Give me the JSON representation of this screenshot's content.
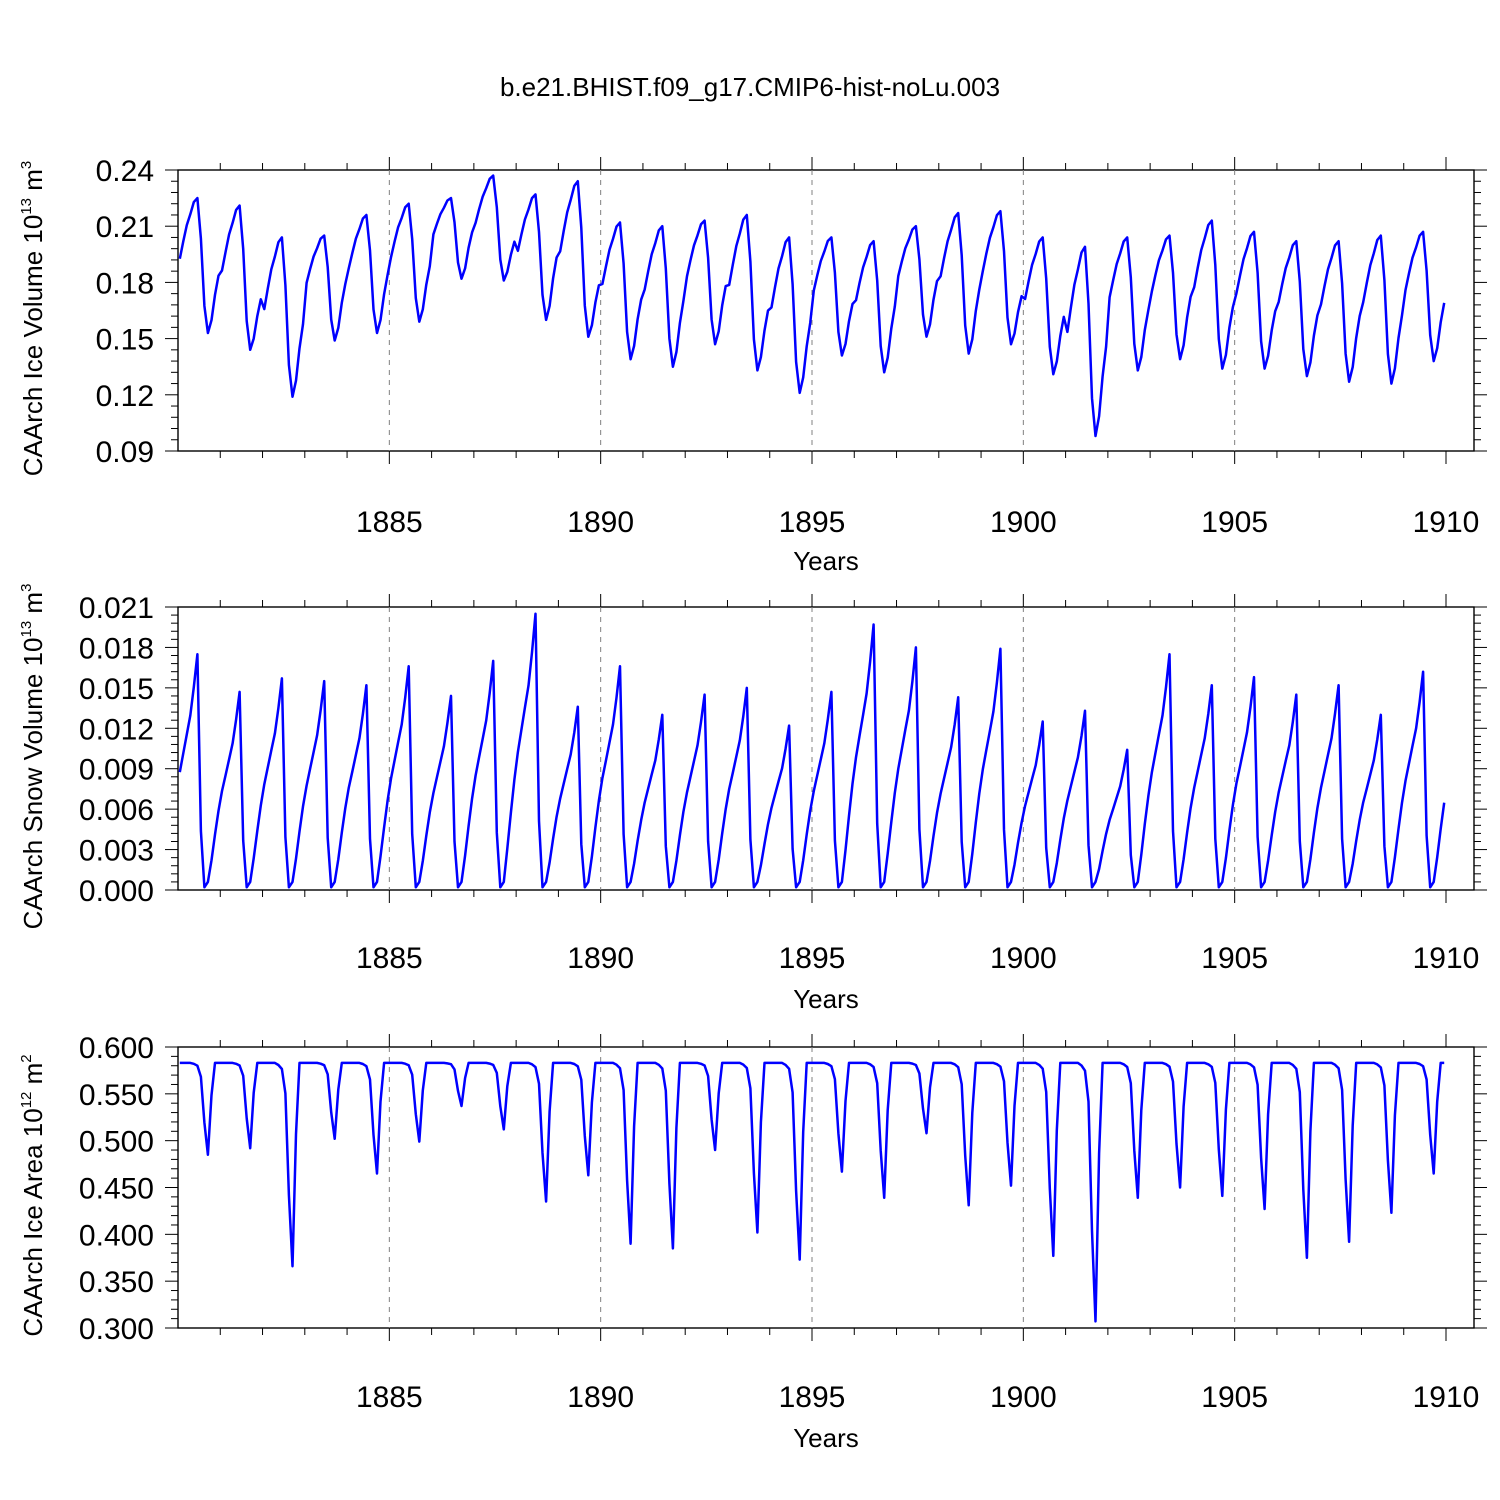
{
  "figure": {
    "title": "b.e21.BHIST.f09_g17.CMIP6-hist-noLu.003"
  },
  "colors": {
    "series": "#0000ff",
    "axis": "#000000",
    "grid": "#808080",
    "background": "#ffffff"
  },
  "chart_data": [
    {
      "type": "line",
      "ylabel_main": "CAArch Ice Volume 10",
      "ylabel_exp": "13",
      "ylabel_unit": " m",
      "ylabel_unit_exp": "3",
      "xlabel": "Years",
      "xlim": [
        1880,
        1910
      ],
      "ylim": [
        0.09,
        0.24
      ],
      "yticks": [
        "0.09",
        "0.12",
        "0.15",
        "0.18",
        "0.21",
        "0.24"
      ],
      "xticks": [
        "1885",
        "1890",
        "1895",
        "1900",
        "1905",
        "1910"
      ],
      "grid": "dashed vertical lines at 1885, 1890, 1895, 1900, 1905",
      "series": [
        {
          "name": "CAArch Ice Volume",
          "annual_max": [
            0.225,
            0.221,
            0.204,
            0.205,
            0.216,
            0.222,
            0.225,
            0.237,
            0.227,
            0.234,
            0.212,
            0.21,
            0.213,
            0.216,
            0.204,
            0.204,
            0.202,
            0.21,
            0.217,
            0.218,
            0.204,
            0.199,
            0.204,
            0.205,
            0.213,
            0.207,
            0.202,
            0.202,
            0.205,
            0.207
          ],
          "annual_min": [
            0.153,
            0.144,
            0.119,
            0.149,
            0.153,
            0.159,
            0.182,
            0.181,
            0.16,
            0.151,
            0.139,
            0.135,
            0.147,
            0.133,
            0.121,
            0.141,
            0.132,
            0.151,
            0.142,
            0.147,
            0.131,
            0.098,
            0.133,
            0.139,
            0.134,
            0.134,
            0.13,
            0.127,
            0.126,
            0.138
          ]
        }
      ]
    },
    {
      "type": "line",
      "ylabel_main": "CAArch Snow Volume 10",
      "ylabel_exp": "13",
      "ylabel_unit": " m",
      "ylabel_unit_exp": "3",
      "xlabel": "Years",
      "xlim": [
        1880,
        1910
      ],
      "ylim": [
        0.0,
        0.021
      ],
      "yticks": [
        "0.000",
        "0.003",
        "0.006",
        "0.009",
        "0.012",
        "0.015",
        "0.018",
        "0.021"
      ],
      "xticks": [
        "1885",
        "1890",
        "1895",
        "1900",
        "1905",
        "1910"
      ],
      "grid": "dashed vertical lines at 1885, 1890, 1895, 1900, 1905",
      "series": [
        {
          "name": "CAArch Snow Volume",
          "annual_max": [
            0.0175,
            0.0147,
            0.0157,
            0.0155,
            0.0152,
            0.0166,
            0.0144,
            0.017,
            0.0205,
            0.0136,
            0.0166,
            0.013,
            0.0145,
            0.015,
            0.0122,
            0.0147,
            0.0197,
            0.018,
            0.0143,
            0.0179,
            0.0125,
            0.0133,
            0.0104,
            0.0175,
            0.0152,
            0.0158,
            0.0145,
            0.0152,
            0.013,
            0.0162
          ]
        }
      ]
    },
    {
      "type": "line",
      "ylabel_main": "CAArch Ice Area 10",
      "ylabel_exp": "12",
      "ylabel_unit": " m",
      "ylabel_unit_exp": "2",
      "xlabel": "Years",
      "xlim": [
        1880,
        1910
      ],
      "ylim": [
        0.3,
        0.6
      ],
      "yticks": [
        "0.300",
        "0.350",
        "0.400",
        "0.450",
        "0.500",
        "0.550",
        "0.600"
      ],
      "xticks": [
        "1885",
        "1890",
        "1895",
        "1900",
        "1905",
        "1910"
      ],
      "grid": "dashed vertical lines at 1885, 1890, 1895, 1900, 1905",
      "series": [
        {
          "name": "CAArch Ice Area",
          "max": 0.583,
          "annual_min": [
            0.485,
            0.492,
            0.366,
            0.502,
            0.465,
            0.499,
            0.537,
            0.512,
            0.435,
            0.463,
            0.39,
            0.385,
            0.49,
            0.402,
            0.373,
            0.467,
            0.439,
            0.508,
            0.431,
            0.452,
            0.377,
            0.307,
            0.439,
            0.45,
            0.441,
            0.427,
            0.375,
            0.392,
            0.423,
            0.465
          ]
        }
      ]
    }
  ]
}
